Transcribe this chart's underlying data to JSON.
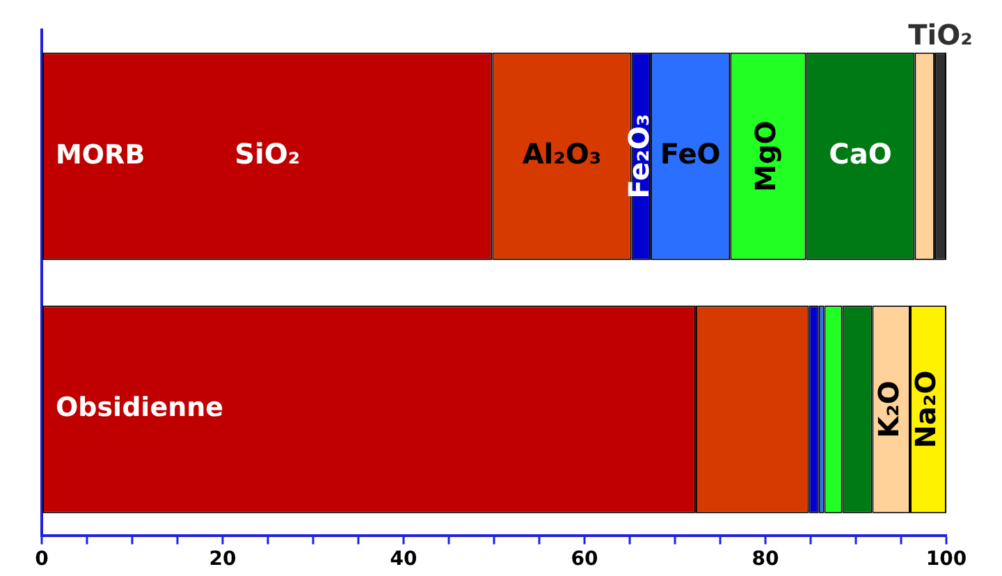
{
  "chart_data": {
    "type": "bar",
    "orientation": "horizontal",
    "stacked": true,
    "legend": false,
    "grid": false,
    "categories": [
      "MORB",
      "Obsidienne"
    ],
    "series": [
      {
        "name": "SiO₂",
        "color": "#c00000",
        "values": [
          49.8,
          72.3
        ]
      },
      {
        "name": "Al₂O₃",
        "color": "#d63a00",
        "values": [
          15.4,
          12.5
        ]
      },
      {
        "name": "Fe₂O₃",
        "color": "#0000d0",
        "values": [
          2.1,
          1.1
        ]
      },
      {
        "name": "FeO",
        "color": "#2a6fff",
        "values": [
          8.8,
          0.6
        ]
      },
      {
        "name": "MgO",
        "color": "#22ff22",
        "values": [
          8.4,
          2.0
        ]
      },
      {
        "name": "CaO",
        "color": "#007a14",
        "values": [
          12.0,
          3.3
        ]
      },
      {
        "name": "K₂O",
        "color": "#ffd29a",
        "values": [
          2.2,
          4.2
        ]
      },
      {
        "name": "Na₂O",
        "color": "#fff200",
        "values": [
          0,
          4.0
        ]
      },
      {
        "name": "TiO₂",
        "color": "#303030",
        "values": [
          1.3,
          0
        ]
      }
    ],
    "xlim": [
      0,
      100
    ],
    "xticks": [
      0,
      {
        "value": 5,
        "label": null
      },
      {
        "value": 10,
        "label": null
      },
      {
        "value": 15,
        "label": null
      },
      20,
      {
        "value": 25,
        "label": null
      },
      {
        "value": 30,
        "label": null
      },
      {
        "value": 35,
        "label": null
      },
      40,
      {
        "value": 45,
        "label": null
      },
      {
        "value": 50,
        "label": null
      },
      {
        "value": 55,
        "label": null
      },
      60,
      {
        "value": 65,
        "label": null
      },
      {
        "value": 70,
        "label": null
      },
      {
        "value": 75,
        "label": null
      },
      80,
      {
        "value": 85,
        "label": null
      },
      {
        "value": 90,
        "label": null
      },
      {
        "value": 95,
        "label": null
      },
      100
    ]
  }
}
